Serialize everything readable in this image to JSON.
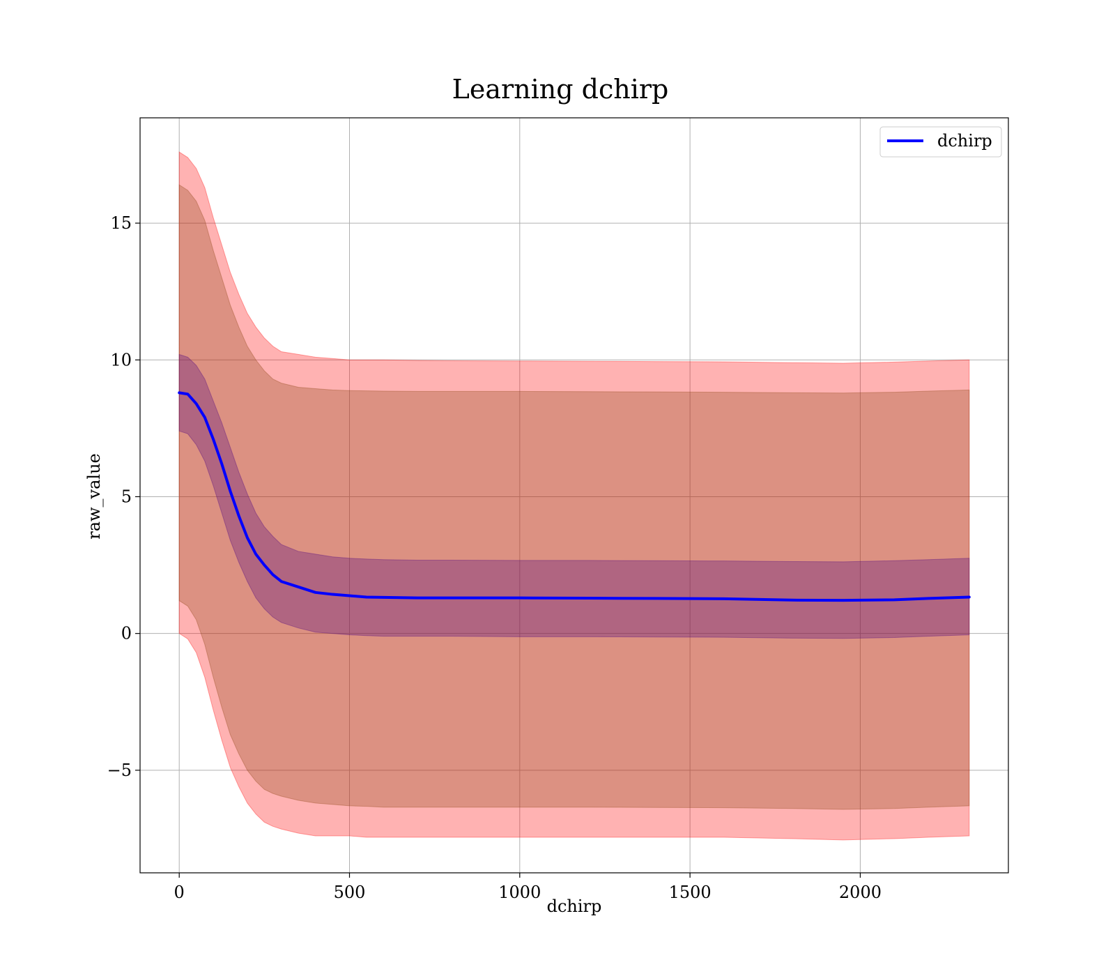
{
  "chart_data": {
    "type": "area",
    "title": "Learning dchirp",
    "xlabel": "dchirp",
    "ylabel": "raw_value",
    "xlim": [
      -115,
      2435
    ],
    "ylim": [
      -8.75,
      18.85
    ],
    "xticks": [
      0,
      500,
      1000,
      1500,
      2000
    ],
    "xtick_labels": [
      "0",
      "500",
      "1000",
      "1500",
      "2000"
    ],
    "yticks": [
      -5,
      0,
      5,
      10,
      15
    ],
    "ytick_labels": [
      "−5",
      "0",
      "5",
      "10",
      "15"
    ],
    "grid": true,
    "legend_position": "top-right",
    "colors": {
      "line": "#0000ff",
      "outer_band": "#ff0000",
      "middle_band": "#8b4513",
      "inner_band": "#4b0082",
      "grid": "#b0b0b0"
    },
    "series": [
      {
        "name": "dchirp",
        "x": [
          0,
          25,
          50,
          75,
          100,
          125,
          150,
          175,
          200,
          225,
          250,
          275,
          300,
          350,
          400,
          450,
          500,
          550,
          600,
          700,
          800,
          1000,
          1200,
          1400,
          1600,
          1800,
          1950,
          2100,
          2200,
          2320
        ],
        "y": [
          8.8,
          8.75,
          8.4,
          7.9,
          7.1,
          6.2,
          5.2,
          4.3,
          3.5,
          2.9,
          2.5,
          2.15,
          1.9,
          1.7,
          1.5,
          1.43,
          1.38,
          1.33,
          1.32,
          1.3,
          1.3,
          1.3,
          1.29,
          1.28,
          1.27,
          1.22,
          1.21,
          1.23,
          1.28,
          1.33
        ]
      }
    ],
    "bands": [
      {
        "color": "outer_band",
        "lower": [
          0.0,
          -0.2,
          -0.7,
          -1.6,
          -2.8,
          -3.9,
          -4.9,
          -5.6,
          -6.2,
          -6.6,
          -6.9,
          -7.05,
          -7.15,
          -7.3,
          -7.4,
          -7.4,
          -7.4,
          -7.45,
          -7.45,
          -7.45,
          -7.45,
          -7.45,
          -7.45,
          -7.45,
          -7.45,
          -7.5,
          -7.55,
          -7.5,
          -7.45,
          -7.4
        ],
        "upper": [
          17.6,
          17.4,
          17.0,
          16.3,
          15.2,
          14.2,
          13.2,
          12.4,
          11.7,
          11.2,
          10.8,
          10.5,
          10.3,
          10.2,
          10.1,
          10.05,
          10.0,
          10.0,
          10.0,
          9.98,
          9.97,
          9.96,
          9.95,
          9.94,
          9.93,
          9.9,
          9.88,
          9.92,
          9.96,
          10.0
        ]
      },
      {
        "color": "middle_band",
        "lower": [
          1.2,
          1.0,
          0.5,
          -0.4,
          -1.6,
          -2.7,
          -3.7,
          -4.4,
          -5.0,
          -5.4,
          -5.7,
          -5.85,
          -5.95,
          -6.1,
          -6.2,
          -6.25,
          -6.3,
          -6.32,
          -6.35,
          -6.35,
          -6.35,
          -6.35,
          -6.35,
          -6.36,
          -6.37,
          -6.4,
          -6.43,
          -6.4,
          -6.35,
          -6.3
        ],
        "upper": [
          16.4,
          16.2,
          15.8,
          15.1,
          14.0,
          13.0,
          12.0,
          11.2,
          10.5,
          10.0,
          9.6,
          9.3,
          9.15,
          9.0,
          8.95,
          8.9,
          8.88,
          8.87,
          8.86,
          8.85,
          8.85,
          8.85,
          8.84,
          8.83,
          8.82,
          8.8,
          8.79,
          8.82,
          8.86,
          8.9
        ]
      },
      {
        "color": "inner_band",
        "lower": [
          7.4,
          7.3,
          6.9,
          6.3,
          5.4,
          4.4,
          3.4,
          2.6,
          1.9,
          1.3,
          0.9,
          0.6,
          0.4,
          0.2,
          0.05,
          0.0,
          -0.05,
          -0.08,
          -0.1,
          -0.1,
          -0.1,
          -0.12,
          -0.12,
          -0.13,
          -0.14,
          -0.17,
          -0.18,
          -0.15,
          -0.1,
          -0.05
        ],
        "upper": [
          10.2,
          10.1,
          9.8,
          9.3,
          8.5,
          7.7,
          6.8,
          5.9,
          5.1,
          4.4,
          3.9,
          3.55,
          3.25,
          3.0,
          2.9,
          2.8,
          2.75,
          2.72,
          2.7,
          2.68,
          2.68,
          2.67,
          2.67,
          2.66,
          2.65,
          2.63,
          2.62,
          2.66,
          2.7,
          2.75
        ]
      }
    ]
  }
}
